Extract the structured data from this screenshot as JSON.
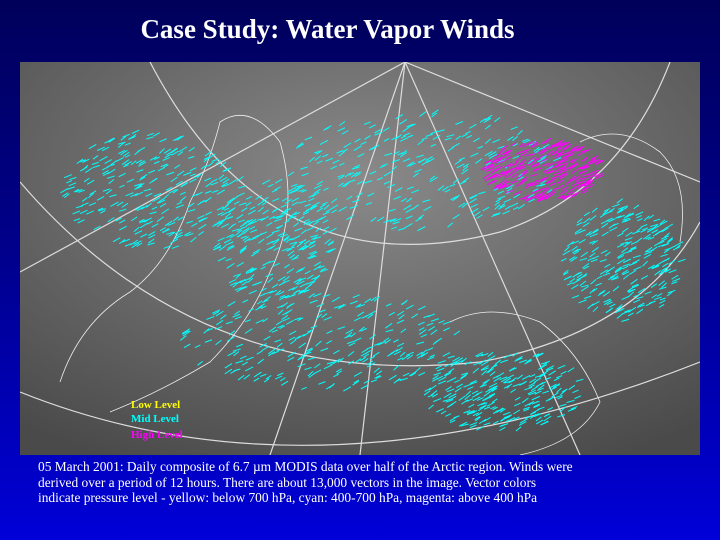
{
  "title": "Case Study: Water Vapor Winds",
  "image": {
    "legend": [
      "Low  Level",
      "Mid  Level",
      "High Level"
    ]
  },
  "caption": [
    "05 March 2001: Daily composite of 6.7 µm MODIS data over half of the Arctic region. Winds were",
    "derived over a period of 12 hours. There are about 13,000 vectors in the image. Vector colors",
    "indicate pressure level - yellow: below 700 hPa, cyan: 400-700 hPa, magenta: above 400 hPa"
  ]
}
